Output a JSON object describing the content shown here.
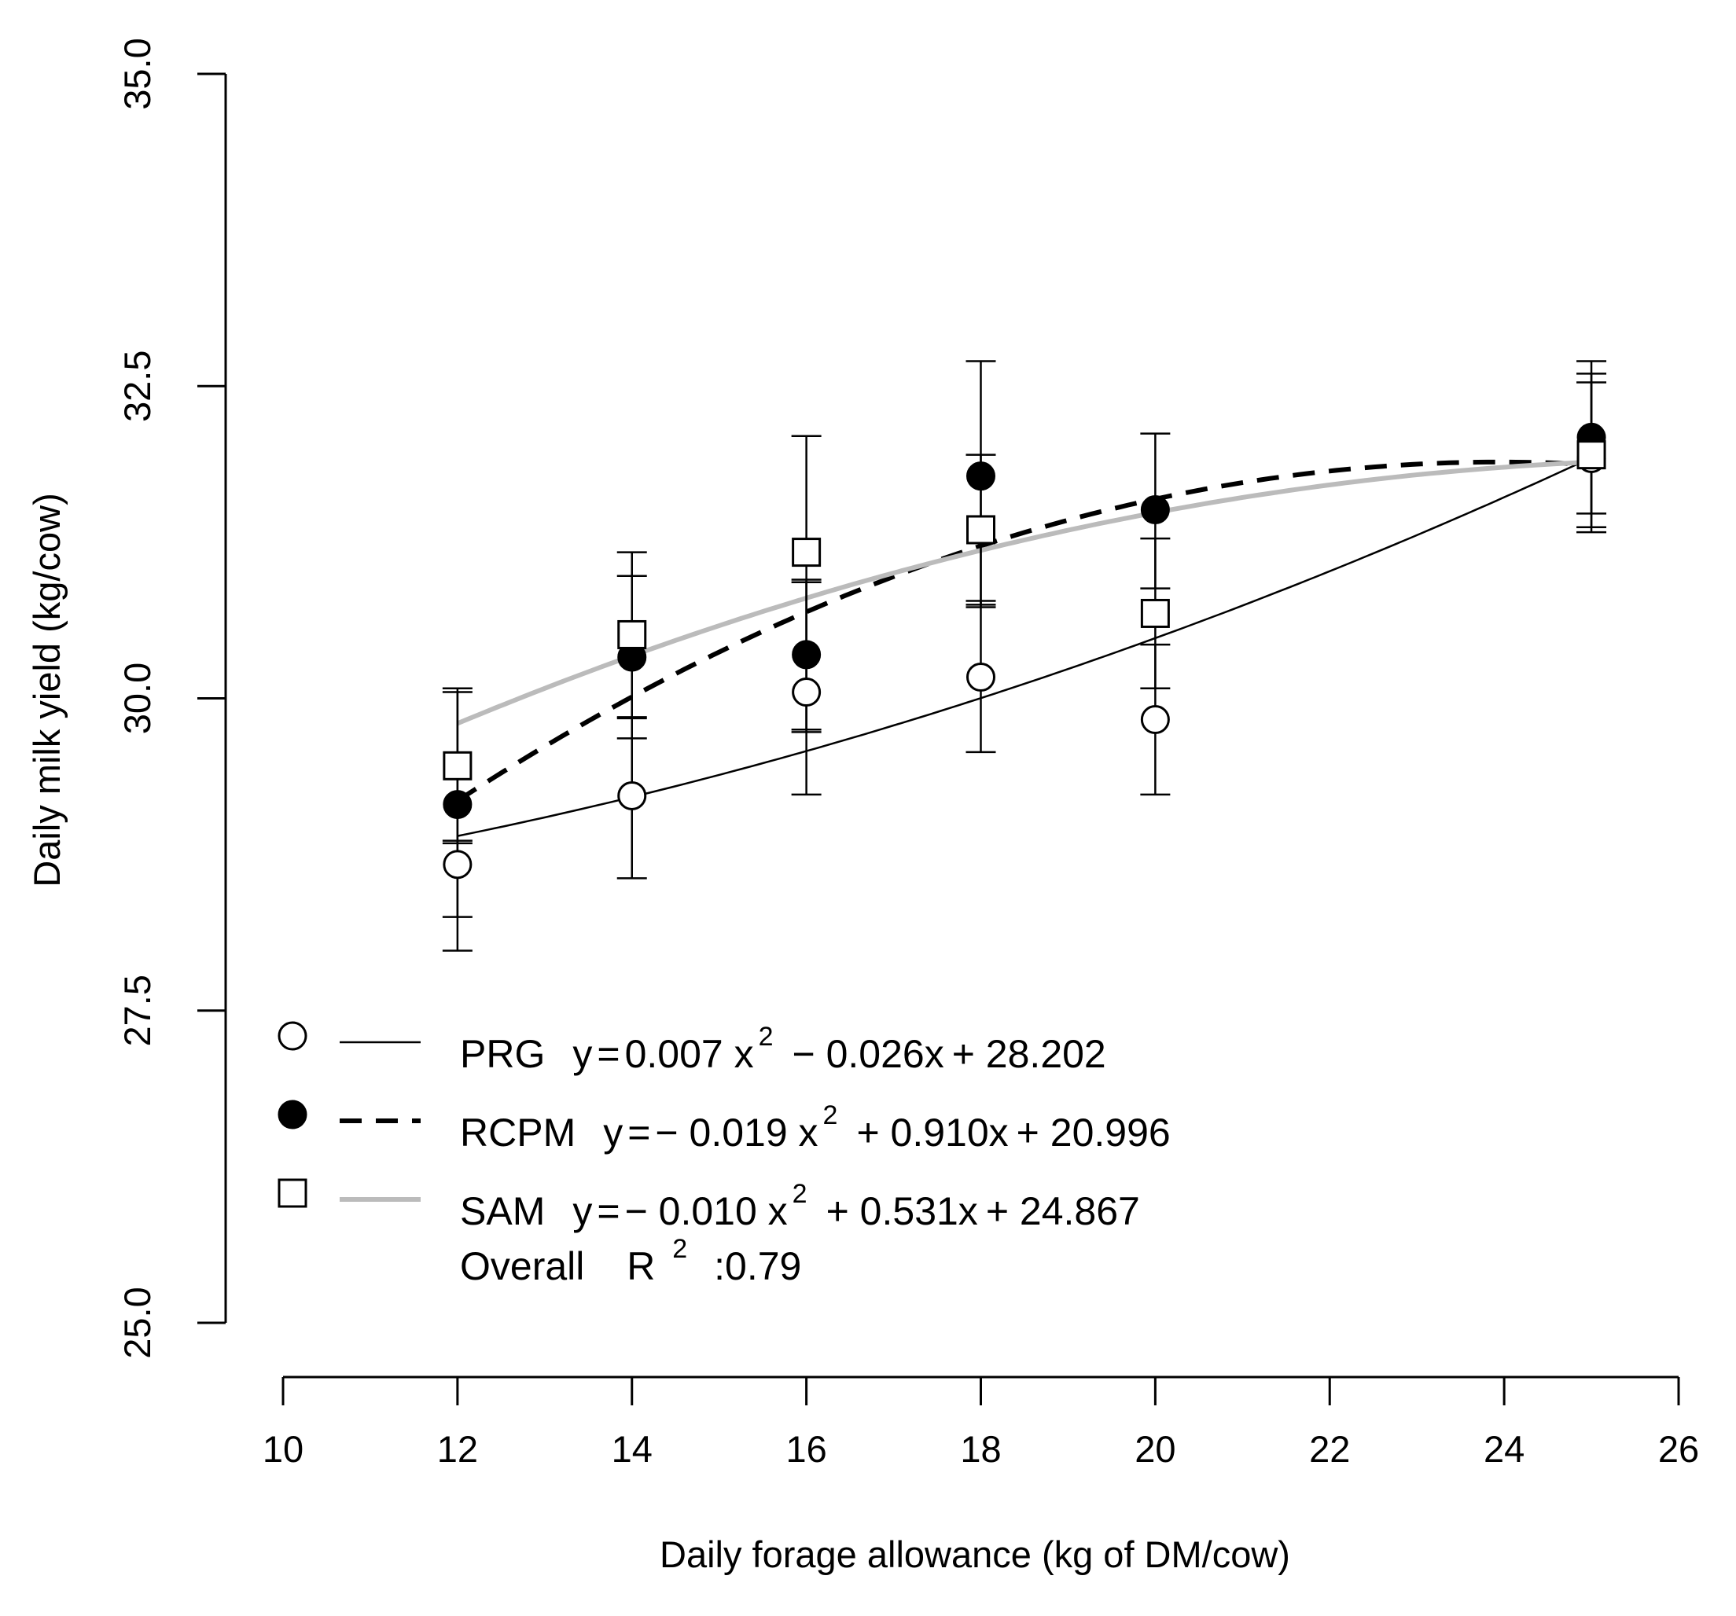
{
  "chart_data": {
    "type": "scatter",
    "xlabel": "Daily forage allowance (kg of DM/cow)",
    "ylabel": "Daily milk yield (kg/cow)",
    "xlim": [
      10,
      26
    ],
    "ylim": [
      25.0,
      35.0
    ],
    "x_ticks": [
      "10",
      "12",
      "14",
      "16",
      "18",
      "20",
      "22",
      "24",
      "26"
    ],
    "y_ticks": [
      "25.0",
      "27.5",
      "30.0",
      "32.5",
      "35.0"
    ],
    "legend_position": "bottom-left",
    "series": [
      {
        "name": "PRG",
        "marker": "open-circle",
        "line": "solid",
        "color": "#000000",
        "x": [
          12,
          14,
          16,
          18,
          20,
          25
        ],
        "y": [
          28.67,
          29.22,
          30.05,
          30.17,
          29.83,
          31.92
        ],
        "err_low": [
          27.98,
          28.56,
          29.23,
          29.57,
          29.23,
          31.33
        ],
        "err_high": [
          28.86,
          29.84,
          30.93,
          30.78,
          30.43,
          32.53
        ],
        "fit": {
          "a": 0.007,
          "b": -0.026,
          "c": 28.202
        },
        "equation": {
          "lhs": "y",
          "eq": "=",
          "t1": "0.007 x",
          "exp": "2",
          "t2": "− 0.026x",
          "t3": "+ 28.202"
        }
      },
      {
        "name": "RCPM",
        "marker": "filled-circle",
        "line": "dashed",
        "color": "#000000",
        "x": [
          12,
          14,
          16,
          18,
          20,
          25
        ],
        "y": [
          29.15,
          30.33,
          30.35,
          31.78,
          31.51,
          32.09
        ],
        "err_low": [
          28.25,
          29.68,
          29.75,
          30.73,
          30.88,
          31.48
        ],
        "err_high": [
          30.05,
          30.98,
          30.95,
          32.7,
          32.12,
          32.7
        ],
        "fit": {
          "a": -0.019,
          "b": 0.91,
          "c": 20.996
        },
        "equation": {
          "lhs": "y",
          "eq": "=",
          "t1": "− 0.019 x",
          "exp": "2",
          "t2": "+ 0.910x",
          "t3": "+ 20.996"
        }
      },
      {
        "name": "SAM",
        "marker": "open-square",
        "line": "solid",
        "color": "#bbbbbb",
        "x": [
          12,
          14,
          16,
          18,
          20,
          25
        ],
        "y": [
          29.46,
          30.51,
          31.17,
          31.35,
          30.68,
          31.95
        ],
        "err_low": [
          28.84,
          29.85,
          29.73,
          30.75,
          30.08,
          31.37
        ],
        "err_high": [
          30.08,
          31.17,
          32.1,
          31.95,
          31.28,
          32.6
        ],
        "fit": {
          "a": -0.01,
          "b": 0.531,
          "c": 24.867
        },
        "equation": {
          "lhs": "y",
          "eq": "=",
          "t1": "− 0.010 x",
          "exp": "2",
          "t2": "+ 0.531x",
          "t3": "+ 24.867"
        }
      }
    ],
    "overall": {
      "label": "Overall",
      "r": "R",
      "exp": "2",
      "value": ":0.79"
    }
  }
}
